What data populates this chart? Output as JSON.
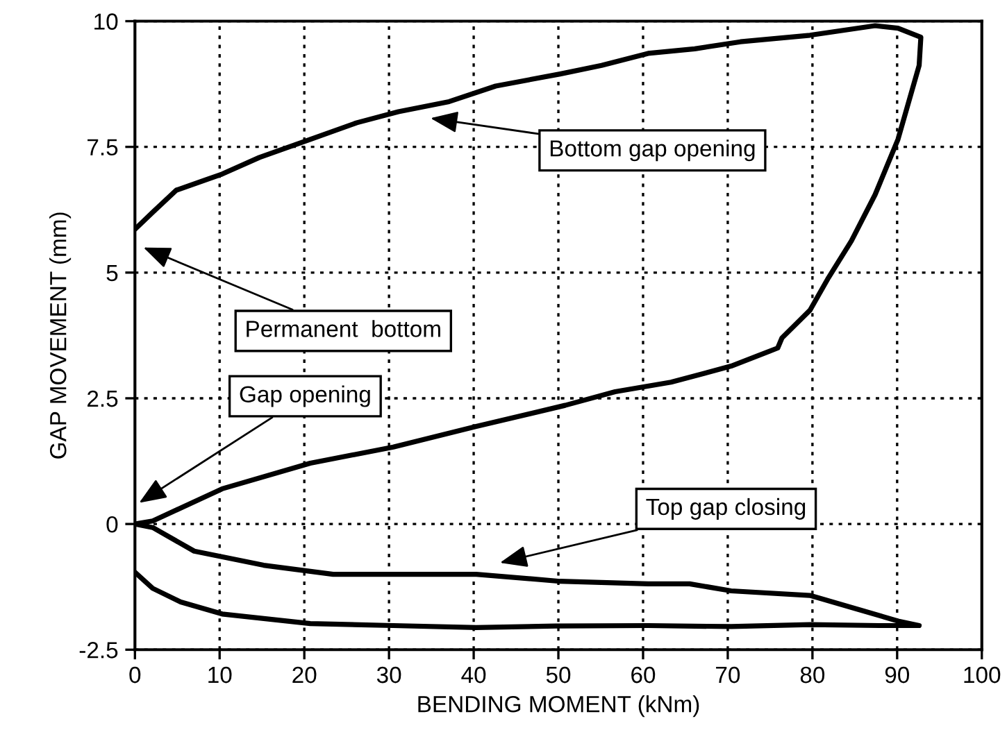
{
  "chart_data": {
    "type": "line",
    "xlabel": "BENDING MOMENT (kNm)",
    "ylabel": "GAP MOVEMENT (mm)",
    "xlim": [
      0,
      100
    ],
    "xticks": [
      0,
      10,
      20,
      30,
      40,
      50,
      60,
      70,
      80,
      90,
      100
    ],
    "ylim": [
      -2.5,
      10
    ],
    "yticks": [
      {
        "value": -2.5,
        "label": "-2.5"
      },
      0,
      2.5,
      5,
      7.5,
      10
    ],
    "grid": true,
    "marker": "none",
    "line_style": "solid",
    "series": [
      {
        "color": "#000000",
        "x": [
          0,
          2.1,
          4.9,
          10.3,
          14.7,
          20.7,
          26.2,
          31.1,
          37.1,
          42.6,
          50.2,
          55.1,
          60.6,
          66.1,
          71.5,
          79.7,
          87.4,
          90.1,
          92.8,
          92.6,
          90.1,
          87.4,
          84.6,
          81.9,
          79.7,
          76.4,
          75.9,
          70.4,
          63.3,
          56.7,
          50.8,
          40.3,
          30.5,
          20.7,
          10.3,
          2.1,
          0,
          2.1,
          7.0,
          15.2,
          23.4,
          30.5,
          40.3,
          50.2,
          60.6,
          65.5,
          70.4,
          79.7,
          85.2,
          90.1,
          92.6,
          87.9,
          79.7,
          70.4,
          60.6,
          49.7,
          40.3,
          30.5,
          20.7,
          10.3,
          5.4,
          2.1,
          0
        ],
        "values": [
          5.86,
          6.2,
          6.64,
          6.96,
          7.29,
          7.65,
          7.98,
          8.2,
          8.4,
          8.71,
          8.95,
          9.12,
          9.36,
          9.45,
          9.59,
          9.72,
          9.91,
          9.86,
          9.68,
          9.12,
          7.65,
          6.55,
          5.63,
          4.9,
          4.25,
          3.7,
          3.5,
          3.14,
          2.82,
          2.63,
          2.36,
          1.94,
          1.53,
          1.21,
          0.7,
          0.06,
          0,
          -0.07,
          -0.54,
          -0.82,
          -1.0,
          -1.0,
          -1.0,
          -1.14,
          -1.19,
          -1.19,
          -1.33,
          -1.42,
          -1.69,
          -1.93,
          -2.02,
          -2.02,
          -2.0,
          -2.04,
          -2.02,
          -2.03,
          -2.06,
          -2.02,
          -1.98,
          -1.79,
          -1.55,
          -1.28,
          -0.96
        ]
      }
    ],
    "annotations": [
      "Bottom gap opening",
      "Permanent  bottom",
      "Gap opening",
      "Top gap closing"
    ]
  }
}
